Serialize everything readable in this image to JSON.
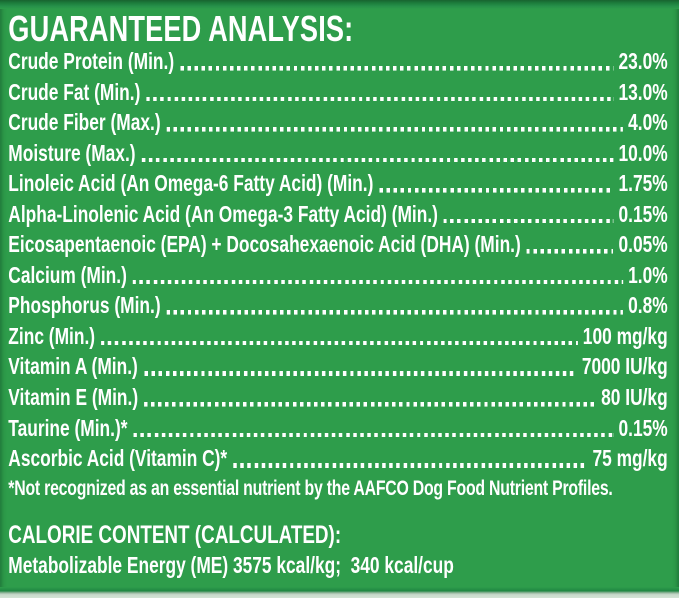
{
  "analysis": {
    "title": "GUARANTEED ANALYSIS:",
    "rows": [
      {
        "label": "Crude Protein (Min.)",
        "value": "23.0%"
      },
      {
        "label": "Crude Fat (Min.)",
        "value": "13.0%"
      },
      {
        "label": "Crude Fiber (Max.)",
        "value": "4.0%"
      },
      {
        "label": "Moisture (Max.)",
        "value": "10.0%"
      },
      {
        "label": "Linoleic Acid (An Omega-6 Fatty Acid) (Min.)",
        "value": "1.75%"
      },
      {
        "label": "Alpha-Linolenic Acid (An Omega-3 Fatty Acid) (Min.)",
        "value": "0.15%"
      },
      {
        "label": "Eicosapentaenoic (EPA) + Docosahexaenoic Acid (DHA) (Min.)",
        "value": "0.05%"
      },
      {
        "label": "Calcium (Min.)",
        "value": "1.0%"
      },
      {
        "label": "Phosphorus (Min.)",
        "value": "0.8%"
      },
      {
        "label": "Zinc (Min.)",
        "value": "100 mg/kg"
      },
      {
        "label": "Vitamin A (Min.)",
        "value": "7000 IU/kg"
      },
      {
        "label": "Vitamin E (Min.)",
        "value": "80 IU/kg"
      },
      {
        "label": "Taurine (Min.)*",
        "value": "0.15%"
      },
      {
        "label": "Ascorbic Acid (Vitamin C)*",
        "value": "75 mg/kg"
      }
    ],
    "footnote": "*Not recognized as an essential nutrient by the AAFCO Dog Food Nutrient Profiles.",
    "calorie": {
      "title": "CALORIE CONTENT (CALCULATED):",
      "line": "Metabolizable Energy (ME) 3575 kcal/kg;  340 kcal/cup"
    }
  },
  "colors": {
    "background_green": "#2E9D4B",
    "top_edge_green": "#1C7B3B",
    "bottom_strip_light": "#C8DACC",
    "text_white": "#FFFFFF"
  }
}
